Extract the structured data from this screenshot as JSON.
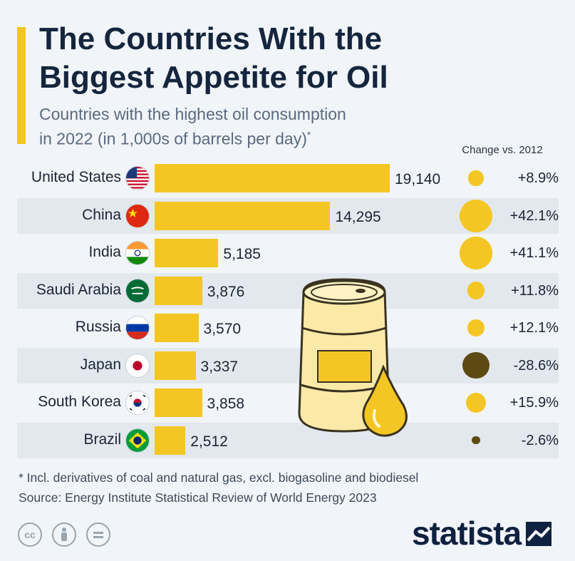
{
  "header": {
    "title_line1": "The Countries With the",
    "title_line2": "Biggest Appetite for Oil",
    "subtitle_line1": "Countries with the highest oil consumption",
    "subtitle_line2": "in 2022 (in 1,000s of barrels per day)",
    "subtitle_mark": "*",
    "change_header": "Change vs. 2012"
  },
  "chart_data": {
    "type": "bar",
    "orientation": "horizontal",
    "categories": [
      "United States",
      "China",
      "India",
      "Saudi Arabia",
      "Russia",
      "Japan",
      "South Korea",
      "Brazil"
    ],
    "values": [
      19140,
      14295,
      5185,
      3876,
      3570,
      3337,
      3858,
      2512
    ],
    "value_labels": [
      "19,140",
      "14,295",
      "5,185",
      "3,876",
      "3,570",
      "3,337",
      "3,858",
      "2,512"
    ],
    "change_vs_2012": [
      8.9,
      42.1,
      41.1,
      11.8,
      12.1,
      -28.6,
      15.9,
      -2.6
    ],
    "change_labels": [
      "+8.9%",
      "+42.1%",
      "+41.1%",
      "+11.8%",
      "+12.1%",
      "-28.6%",
      "+15.9%",
      "-2.6%"
    ],
    "flags": [
      "us-flag",
      "china-flag",
      "india-flag",
      "saudi-arabia-flag",
      "russia-flag",
      "japan-flag",
      "south-korea-flag",
      "brazil-flag"
    ],
    "colors": {
      "bar": "#f3c623",
      "positive": "#f3c623",
      "negative": "#5c4a12"
    }
  },
  "footnote": {
    "note": "* Incl. derivatives of coal and natural gas, excl. biogasoline and biodiesel",
    "source": "Source: Energy Institute Statistical Review of World Energy 2023"
  },
  "license_icons": [
    "cc-icon",
    "attribution-icon",
    "no-derivatives-icon"
  ],
  "brand": {
    "name": "statista"
  }
}
